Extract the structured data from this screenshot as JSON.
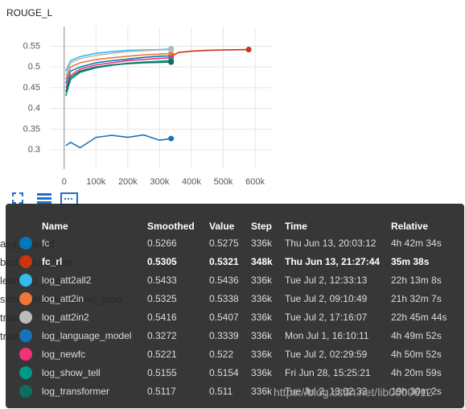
{
  "chart_data": {
    "type": "line",
    "title": "ROUGE_L",
    "xlim": [
      -45000,
      653000
    ],
    "ylim": [
      0.2535,
      0.5975
    ],
    "xticks": [
      0,
      {
        "value": 100000,
        "label": "100k"
      },
      {
        "value": 200000,
        "label": "200k"
      },
      {
        "value": 300000,
        "label": "300k"
      },
      {
        "value": 400000,
        "label": "400k"
      },
      {
        "value": 500000,
        "label": "500k"
      },
      {
        "value": 600000,
        "label": "600k"
      }
    ],
    "yticks": [
      0.3,
      0.35,
      0.4,
      0.45,
      0.5,
      0.55
    ],
    "grid": true,
    "series": [
      {
        "name": "fc",
        "color": "#0077bb",
        "x": [
          5000,
          20000,
          50000,
          100000,
          150000,
          200000,
          250000,
          300000,
          336000
        ],
        "values": [
          0.46,
          0.49,
          0.5,
          0.51,
          0.515,
          0.519,
          0.523,
          0.526,
          0.5266
        ]
      },
      {
        "name": "fc_rl",
        "color": "#cc3311",
        "x": [
          336000,
          348000,
          360000,
          400000,
          450000,
          500000,
          580000
        ],
        "values": [
          0.527,
          0.5305,
          0.535,
          0.538,
          0.54,
          0.541,
          0.542
        ]
      },
      {
        "name": "log_att2all2",
        "color": "#33bbee",
        "x": [
          5000,
          20000,
          50000,
          100000,
          150000,
          200000,
          250000,
          300000,
          336000
        ],
        "values": [
          0.49,
          0.515,
          0.525,
          0.533,
          0.537,
          0.54,
          0.541,
          0.542,
          0.5433
        ]
      },
      {
        "name": "log_att2in",
        "color": "#ee7733",
        "x": [
          5000,
          20000,
          50000,
          100000,
          150000,
          200000,
          250000,
          300000,
          336000
        ],
        "values": [
          0.47,
          0.5,
          0.51,
          0.518,
          0.522,
          0.526,
          0.529,
          0.531,
          0.5325
        ]
      },
      {
        "name": "log_att2in2",
        "color": "#bbbbbb",
        "x": [
          5000,
          20000,
          50000,
          100000,
          150000,
          200000,
          250000,
          300000,
          336000
        ],
        "values": [
          0.48,
          0.51,
          0.52,
          0.528,
          0.533,
          0.537,
          0.539,
          0.541,
          0.5416
        ]
      },
      {
        "name": "log_language_model",
        "color": "#1a73b8",
        "x": [
          5000,
          20000,
          50000,
          100000,
          150000,
          200000,
          250000,
          300000,
          336000
        ],
        "values": [
          0.31,
          0.318,
          0.305,
          0.33,
          0.335,
          0.33,
          0.336,
          0.323,
          0.3272
        ]
      },
      {
        "name": "log_newfc",
        "color": "#ee3377",
        "x": [
          5000,
          20000,
          50000,
          100000,
          150000,
          200000,
          250000,
          300000,
          336000
        ],
        "values": [
          0.45,
          0.48,
          0.495,
          0.505,
          0.51,
          0.515,
          0.518,
          0.521,
          0.5221
        ]
      },
      {
        "name": "log_show_tell",
        "color": "#009988",
        "x": [
          5000,
          20000,
          50000,
          100000,
          150000,
          200000,
          250000,
          300000,
          336000
        ],
        "values": [
          0.43,
          0.47,
          0.487,
          0.498,
          0.504,
          0.509,
          0.512,
          0.514,
          0.5155
        ]
      },
      {
        "name": "log_transformer",
        "color": "#0b6e5e",
        "x": [
          5000,
          20000,
          50000,
          100000,
          150000,
          200000,
          250000,
          300000,
          336000
        ],
        "values": [
          0.44,
          0.475,
          0.49,
          0.5,
          0.505,
          0.508,
          0.51,
          0.511,
          0.5117
        ]
      }
    ]
  },
  "tooltip": {
    "header": [
      "Name",
      "Smoothed",
      "Value",
      "Step",
      "Time",
      "Relative"
    ],
    "highlight": 1,
    "rows": [
      [
        "0.5266",
        "0.5275",
        "336k",
        "Thu Jun 13, 20:03:12",
        "4h 42m 34s"
      ],
      [
        "0.5305",
        "0.5321",
        "348k",
        "Thu Jun 13, 21:27:44",
        "35m 38s"
      ],
      [
        "0.5433",
        "0.5436",
        "336k",
        "Tue Jul 2, 12:33:13",
        "22h 13m 8s"
      ],
      [
        "0.5325",
        "0.5338",
        "336k",
        "Tue Jul 2, 09:10:49",
        "21h 32m 7s"
      ],
      [
        "0.5416",
        "0.5407",
        "336k",
        "Tue Jul 2, 17:16:07",
        "22h 45m 44s"
      ],
      [
        "0.3272",
        "0.3339",
        "336k",
        "Mon Jul 1, 16:10:11",
        "4h 49m 52s"
      ],
      [
        "0.5221",
        "0.522",
        "336k",
        "Tue Jul 2, 02:29:59",
        "4h 50m 52s"
      ],
      [
        "0.5155",
        "0.5154",
        "336k",
        "Fri Jun 28, 15:25:21",
        "4h 20m 59s"
      ],
      [
        "0.5117",
        "0.511",
        "336k",
        "Tue Jul 2, 13:02:32",
        "19h 30m 2s"
      ]
    ]
  },
  "sidebar": [
    "avg_reward",
    "bad_count_rate",
    "learning_rate",
    "scheduled_sampling_prob",
    "train",
    "train"
  ],
  "watermark": "https://blog.csdn.net/lib0000612"
}
